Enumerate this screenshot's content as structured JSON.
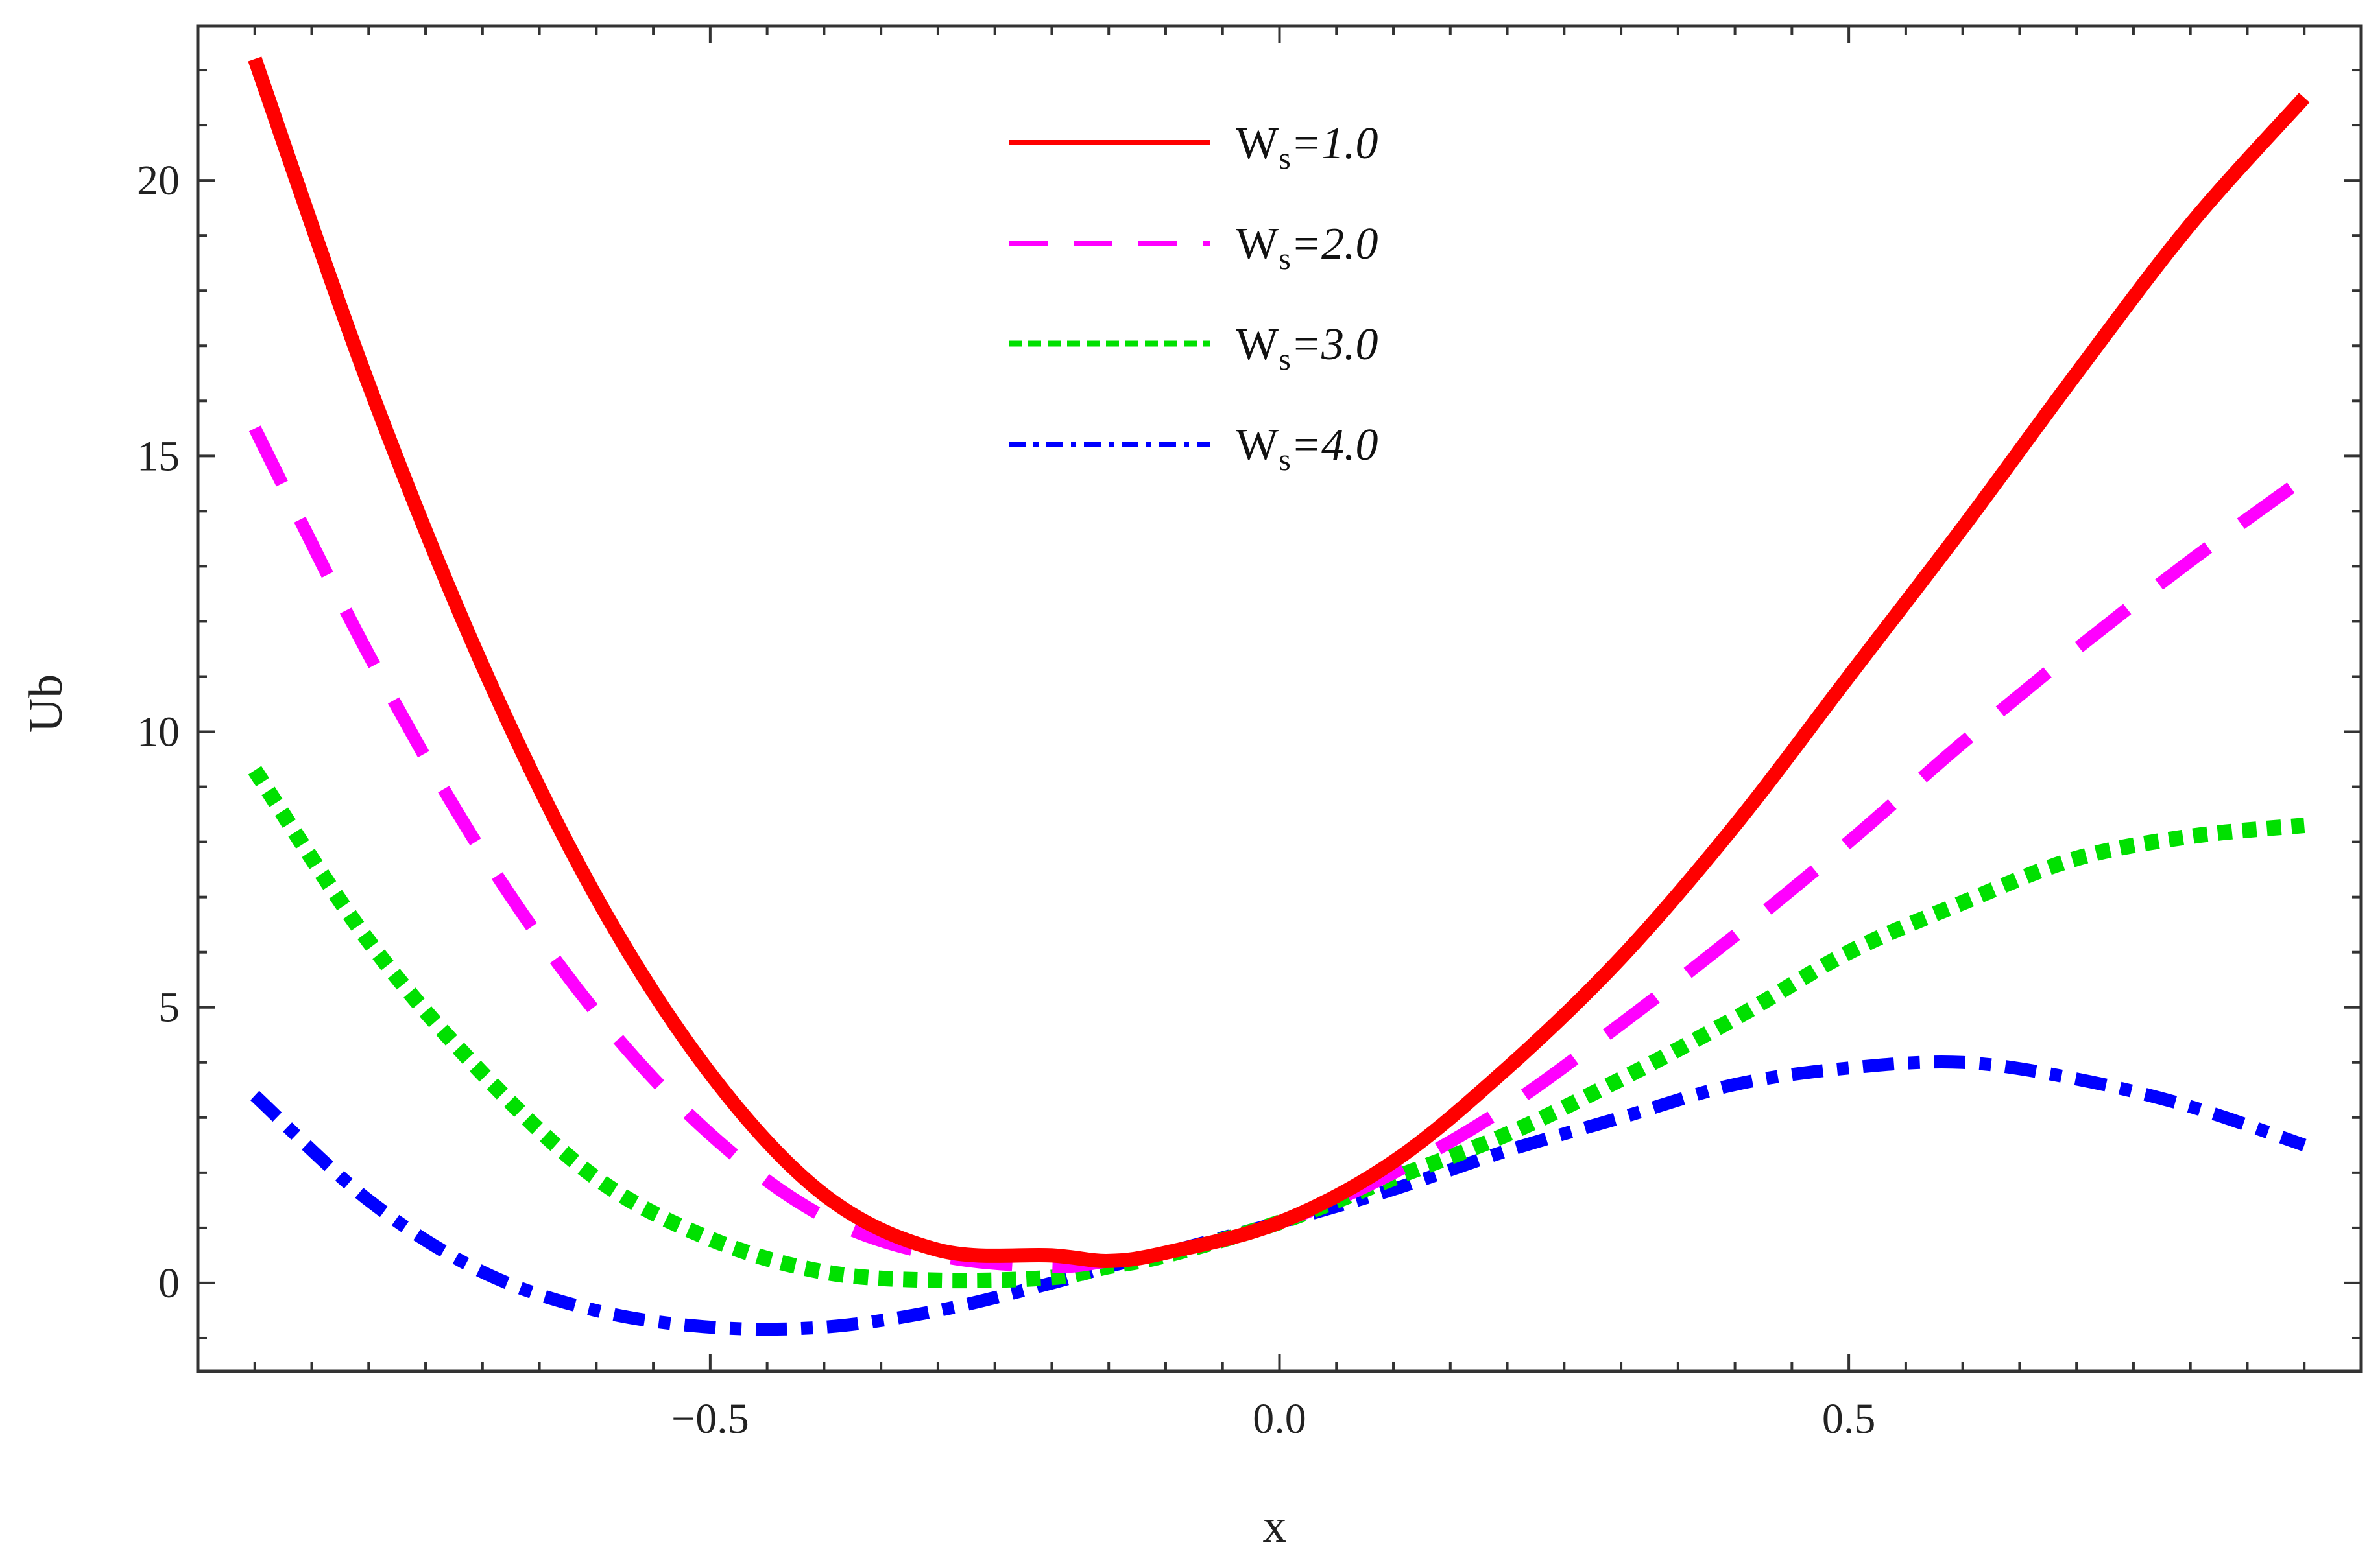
{
  "chart_data": {
    "type": "line",
    "title": "",
    "xlabel": "x",
    "ylabel": "Ub",
    "xlim": [
      -0.95,
      0.95
    ],
    "ylim": [
      -1.6,
      22.8
    ],
    "xticks_major": [
      -0.5,
      0.0,
      0.5
    ],
    "xtick_labels": [
      "−0.5",
      "0.0",
      "0.5"
    ],
    "yticks_major": [
      0,
      5,
      10,
      15,
      20
    ],
    "ytick_labels": [
      "0",
      "5",
      "10",
      "15",
      "20"
    ],
    "grid": false,
    "legend_position": "top-center",
    "x": [
      -0.9,
      -0.8,
      -0.7,
      -0.6,
      -0.5,
      -0.4,
      -0.3,
      -0.2,
      -0.15,
      -0.1,
      0.0,
      0.1,
      0.2,
      0.3,
      0.4,
      0.5,
      0.6,
      0.7,
      0.8,
      0.9
    ],
    "series": [
      {
        "name": "1.0",
        "legend_prefix": "W",
        "legend_sub": "s",
        "legend_suffix": "=1.0",
        "color": "#ff0000",
        "style": "solid",
        "values": [
          22.2,
          16.3,
          11.2,
          7.0,
          3.8,
          1.6,
          0.6,
          0.5,
          0.4,
          0.55,
          1.1,
          2.2,
          3.9,
          5.9,
          8.3,
          11.0,
          13.7,
          16.5,
          19.2,
          21.5
        ]
      },
      {
        "name": "2.0",
        "legend_prefix": "W",
        "legend_sub": "s",
        "legend_suffix": "=2.0",
        "color": "#ff00ff",
        "style": "dashed",
        "values": [
          15.5,
          11.4,
          7.8,
          4.9,
          2.7,
          1.2,
          0.5,
          0.3,
          0.4,
          0.55,
          1.1,
          2.0,
          3.2,
          4.7,
          6.3,
          8.0,
          9.8,
          11.5,
          13.1,
          14.6
        ]
      },
      {
        "name": "3.0",
        "legend_prefix": "W",
        "legend_sub": "s",
        "legend_suffix": "=3.0",
        "color": "#00e000",
        "style": "dotted",
        "values": [
          9.3,
          6.2,
          3.8,
          1.9,
          0.8,
          0.2,
          0.05,
          0.1,
          0.3,
          0.5,
          1.1,
          1.9,
          2.7,
          3.7,
          4.8,
          6.0,
          6.9,
          7.7,
          8.1,
          8.3
        ]
      },
      {
        "name": "4.0",
        "legend_prefix": "W",
        "legend_sub": "s",
        "legend_suffix": "=4.0",
        "color": "#0000ff",
        "style": "dashdot",
        "values": [
          3.4,
          1.5,
          0.2,
          -0.5,
          -0.8,
          -0.8,
          -0.5,
          0.0,
          0.3,
          0.55,
          1.1,
          1.7,
          2.4,
          3.0,
          3.6,
          3.9,
          4.0,
          3.7,
          3.2,
          2.5
        ]
      }
    ]
  }
}
